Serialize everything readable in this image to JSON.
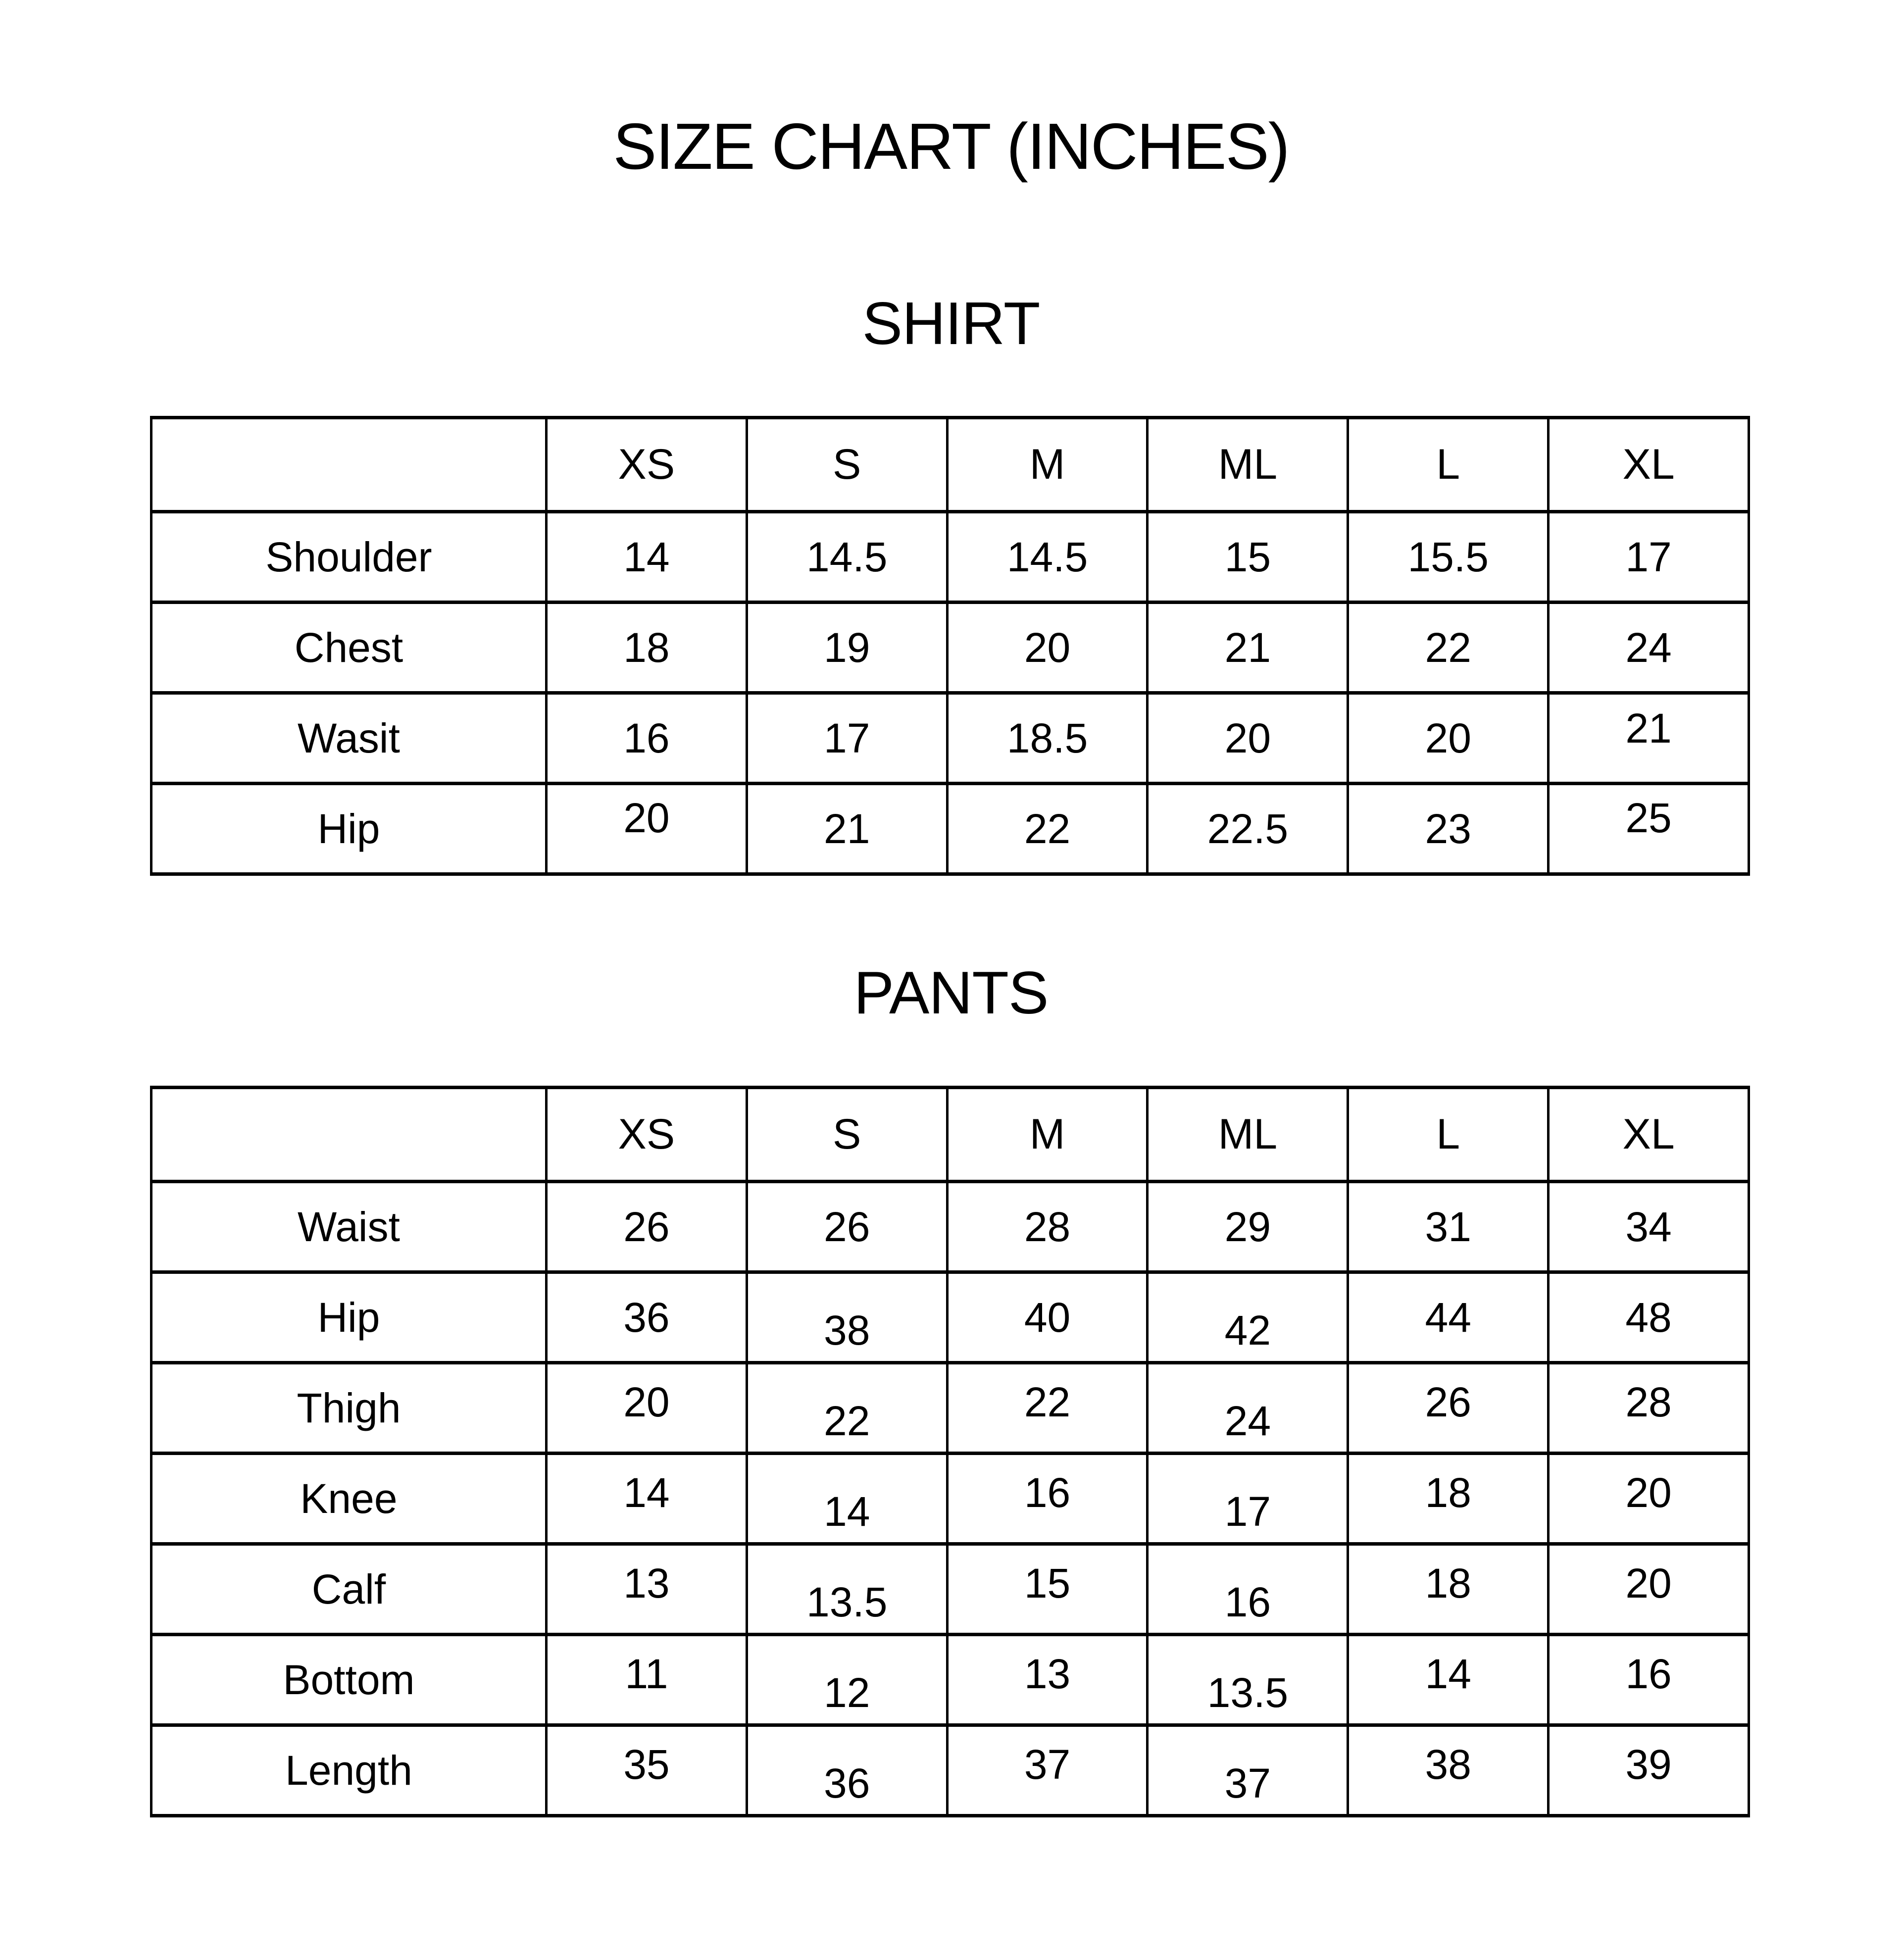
{
  "title": "SIZE CHART (INCHES)",
  "colors": {
    "background": "#ffffff",
    "text": "#000000",
    "grid": "#000000"
  },
  "sections": [
    {
      "heading": "SHIRT",
      "table": {
        "columns": [
          "",
          "XS",
          "S",
          "M",
          "ML",
          "L",
          "XL"
        ],
        "rows": [
          {
            "label": "Shoulder",
            "values": [
              "14",
              "14.5",
              "14.5",
              "15",
              "15.5",
              "17"
            ]
          },
          {
            "label": "Chest",
            "values": [
              "18",
              "19",
              "20",
              "21",
              "22",
              "24"
            ]
          },
          {
            "label": "Wasit",
            "values": [
              "16",
              "17",
              "18.5",
              "20",
              "20",
              "21"
            ]
          },
          {
            "label": "Hip",
            "values": [
              "20",
              "21",
              "22",
              "22.5",
              "23",
              "25"
            ]
          }
        ]
      }
    },
    {
      "heading": "PANTS",
      "table": {
        "columns": [
          "",
          "XS",
          "S",
          "M",
          "ML",
          "L",
          "XL"
        ],
        "rows": [
          {
            "label": "Waist",
            "values": [
              "26",
              "26",
              "28",
              "29",
              "31",
              "34"
            ]
          },
          {
            "label": "Hip",
            "values": [
              "36",
              "38",
              "40",
              "42",
              "44",
              "48"
            ]
          },
          {
            "label": "Thigh",
            "values": [
              "20",
              "22",
              "22",
              "24",
              "26",
              "28"
            ]
          },
          {
            "label": "Knee",
            "values": [
              "14",
              "14",
              "16",
              "17",
              "18",
              "20"
            ]
          },
          {
            "label": "Calf",
            "values": [
              "13",
              "13.5",
              "15",
              "16",
              "18",
              "20"
            ]
          },
          {
            "label": "Bottom",
            "values": [
              "11",
              "12",
              "13",
              "13.5",
              "14",
              "16"
            ]
          },
          {
            "label": "Length",
            "values": [
              "35",
              "36",
              "37",
              "37",
              "38",
              "39"
            ]
          }
        ]
      }
    }
  ]
}
